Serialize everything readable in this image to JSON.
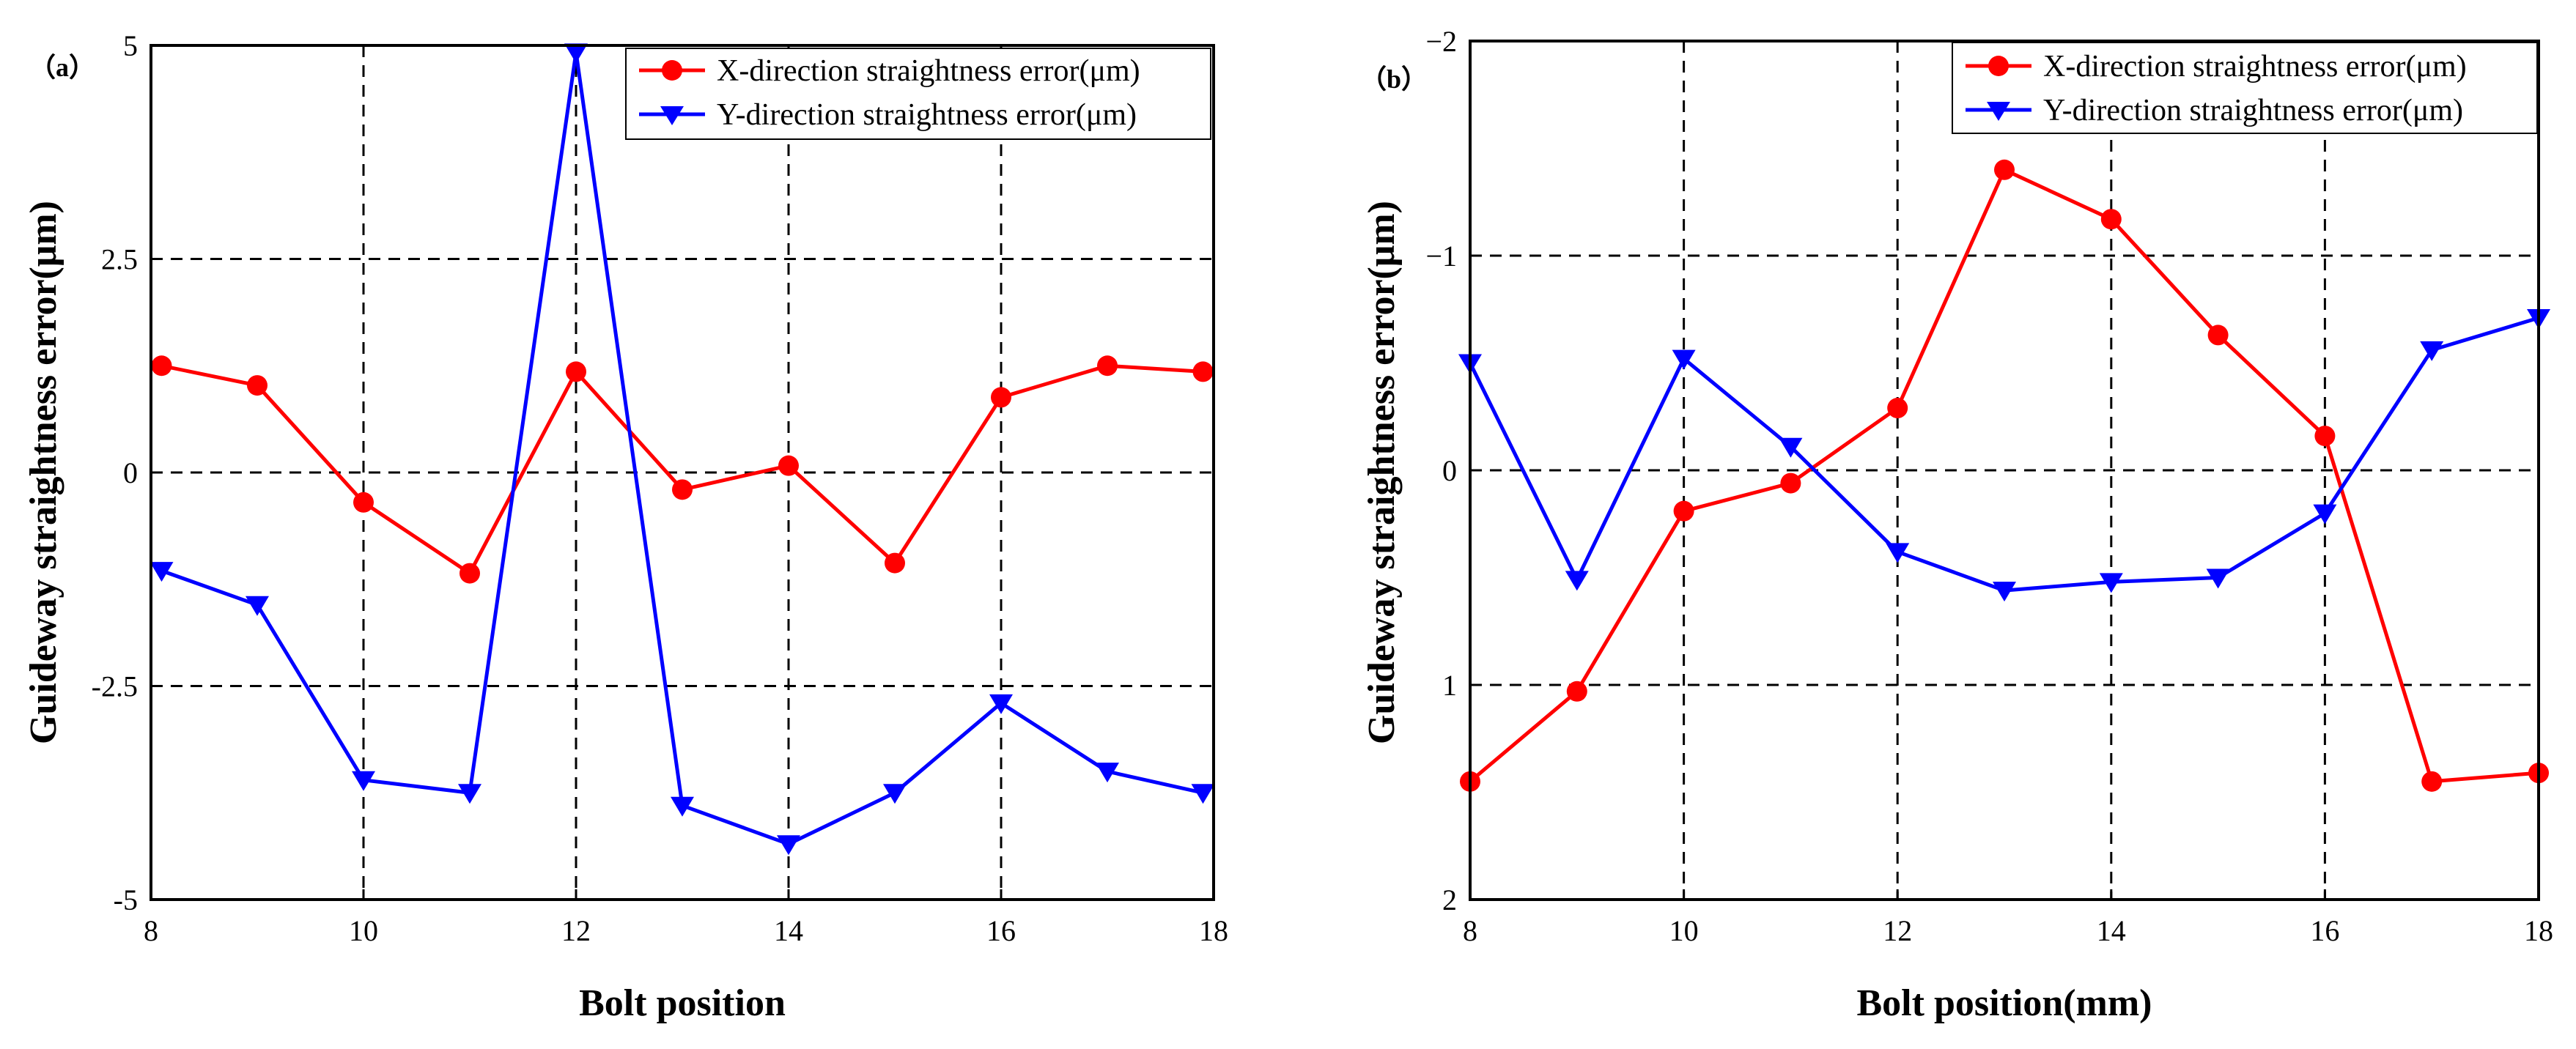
{
  "chart_data": [
    {
      "type": "line",
      "panel_label": "（a）",
      "xlabel": "Bolt position",
      "ylabel": "Guideway straightness error(μm)",
      "xlim": [
        8,
        18
      ],
      "ylim": [
        -5,
        5
      ],
      "y_inverted": false,
      "xticks": [
        8,
        10,
        12,
        14,
        16,
        18
      ],
      "xtick_labels": [
        "8",
        "10",
        "12",
        "14",
        "16",
        "18"
      ],
      "yticks": [
        -5,
        -2.5,
        0,
        2.5,
        5
      ],
      "ytick_labels": [
        "-5",
        "-2.5",
        "0",
        "2.5",
        "5"
      ],
      "grid": "dashed",
      "legend_position": "top-right",
      "series": [
        {
          "name": "X-direction straightness error(μm)",
          "color": "#ff0000",
          "marker": "circle",
          "x": [
            8.1,
            9,
            10,
            11,
            12,
            13,
            14,
            15,
            16,
            17,
            17.9
          ],
          "values": [
            1.25,
            1.02,
            -0.35,
            -1.18,
            1.18,
            -0.2,
            0.08,
            -1.06,
            0.88,
            1.25,
            1.18
          ]
        },
        {
          "name": "Y-direction straightness error(μm)",
          "color": "#0000ff",
          "marker": "triangle-down",
          "x": [
            8.1,
            9,
            10,
            11,
            12,
            13,
            14,
            15,
            16,
            17,
            17.9
          ],
          "values": [
            -1.15,
            -1.55,
            -3.6,
            -3.75,
            4.92,
            -3.9,
            -4.35,
            -3.75,
            -2.7,
            -3.5,
            -3.75
          ]
        }
      ]
    },
    {
      "type": "line",
      "panel_label": "（b）",
      "xlabel": "Bolt position(mm)",
      "ylabel": "Guideway straightness error(μm)",
      "xlim": [
        8,
        18
      ],
      "ylim": [
        -2,
        2
      ],
      "y_inverted": true,
      "xticks": [
        8,
        10,
        12,
        14,
        16,
        18
      ],
      "xtick_labels": [
        "8",
        "10",
        "12",
        "14",
        "16",
        "18"
      ],
      "yticks": [
        -2,
        -1,
        0,
        1,
        2
      ],
      "ytick_labels": [
        "−2",
        "−1",
        "0",
        "1",
        "2"
      ],
      "grid": "dashed",
      "legend_position": "top-right",
      "series": [
        {
          "name": "X-direction straightness error(μm)",
          "color": "#ff0000",
          "marker": "circle",
          "x": [
            8,
            9,
            10,
            11,
            12,
            13,
            14,
            15,
            16,
            17,
            18
          ],
          "values": [
            1.45,
            1.03,
            0.19,
            0.06,
            -0.29,
            -1.4,
            -1.17,
            -0.63,
            -0.16,
            1.45,
            1.41
          ]
        },
        {
          "name": "Y-direction straightness error(μm)",
          "color": "#0000ff",
          "marker": "triangle-down",
          "x": [
            8,
            9,
            10,
            11,
            12,
            13,
            14,
            15,
            16,
            17,
            18
          ],
          "values": [
            -0.5,
            0.51,
            -0.52,
            -0.11,
            0.38,
            0.56,
            0.52,
            0.5,
            0.2,
            -0.56,
            -0.71
          ]
        }
      ]
    }
  ]
}
